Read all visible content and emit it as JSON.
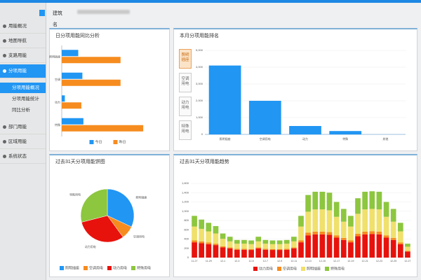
{
  "header": {
    "label": "建筑名称："
  },
  "sidebar": {
    "items": [
      "用能概况",
      "地图导航",
      "支路用能",
      "分项用能",
      "分项用能概况",
      "分项用能统计",
      "同比分析",
      "部门用能",
      "区域用能",
      "系统状态"
    ]
  },
  "chart_data": [
    {
      "type": "hbar",
      "title": "日分项用能同比分析",
      "categories": [
        "照明插座",
        "空调",
        "动力",
        "特殊"
      ],
      "xlim": [
        0,
        100
      ],
      "series": [
        {
          "name": "今日",
          "color": "#2196f3",
          "values": [
            16,
            20,
            3,
            21
          ]
        },
        {
          "name": "昨日",
          "color": "#f68c1f",
          "values": [
            57,
            57,
            19,
            79
          ]
        }
      ]
    },
    {
      "type": "bar",
      "title": "本月分项用能排名",
      "buttons": [
        "照明插座",
        "空调用电",
        "动力用电",
        "特殊用电"
      ],
      "categories": [
        "照明插座",
        "空调用电",
        "动力",
        "特殊",
        "其他"
      ],
      "values": [
        4100,
        2000,
        500,
        200,
        0
      ],
      "color": "#2196f3",
      "ylim": [
        0,
        5000
      ],
      "yticks": [
        0,
        {
          "value": 1000,
          "label": "1,000"
        },
        {
          "value": 2000,
          "label": "2,000"
        },
        {
          "value": 3000,
          "label": "3,000"
        },
        {
          "value": 4000,
          "label": "4,000"
        },
        {
          "value": 5000,
          "label": "5,000"
        }
      ],
      "grid": true
    },
    {
      "type": "pie",
      "title": "过去31天分项用能饼图",
      "categories": [
        "照明插座",
        "空调用电",
        "动力用电",
        "特殊用电"
      ],
      "values": [
        32,
        8,
        31,
        29
      ],
      "colors": [
        "#2196f3",
        "#f68c1f",
        "#e8120c",
        "#8dc63f"
      ]
    },
    {
      "type": "stacked",
      "title": "过去31天分项用能趋势",
      "categories": [
        "11-27",
        null,
        "11-29",
        null,
        "12-1",
        null,
        "12-3",
        null,
        "12-5",
        null,
        "12-7",
        null,
        "12-9",
        null,
        "12-11",
        null,
        "12-13",
        null,
        "12-15",
        null,
        "12-17",
        null,
        "12-19",
        null,
        "12-21",
        null,
        "12-23",
        null,
        "12-25",
        null,
        "12-27"
      ],
      "ylim": [
        0,
        1600
      ],
      "yticks": [
        0,
        200,
        400,
        600,
        800,
        {
          "value": 1000,
          "label": "1,000"
        },
        {
          "value": 1200,
          "label": "1,200"
        },
        {
          "value": 1400,
          "label": "1,400"
        },
        {
          "value": 1600,
          "label": "1,600"
        }
      ],
      "grid": true,
      "series": [
        {
          "name": "动力用电",
          "color": "#e8120c",
          "values": [
            330,
            310,
            290,
            270,
            220,
            200,
            170,
            170,
            165,
            200,
            170,
            165,
            165,
            170,
            200,
            330,
            480,
            500,
            500,
            490,
            430,
            380,
            330,
            460,
            500,
            510,
            500,
            430,
            380,
            290,
            130
          ]
        },
        {
          "name": "空调用电",
          "color": "#f68c1f",
          "values": [
            40,
            40,
            35,
            30,
            25,
            20,
            20,
            20,
            20,
            20,
            20,
            20,
            20,
            20,
            20,
            40,
            60,
            60,
            60,
            60,
            50,
            45,
            40,
            55,
            60,
            60,
            60,
            50,
            45,
            35,
            15
          ]
        },
        {
          "name": "照明插座",
          "color": "#f0e06c",
          "values": [
            300,
            270,
            240,
            220,
            160,
            130,
            110,
            110,
            105,
            130,
            110,
            105,
            105,
            110,
            130,
            300,
            450,
            480,
            480,
            470,
            400,
            350,
            300,
            430,
            480,
            480,
            480,
            400,
            350,
            240,
            90
          ]
        },
        {
          "name": "特殊用电",
          "color": "#8dc63f",
          "values": [
            230,
            200,
            185,
            160,
            115,
            100,
            80,
            80,
            80,
            100,
            80,
            80,
            80,
            80,
            100,
            230,
            360,
            380,
            380,
            380,
            320,
            275,
            230,
            335,
            380,
            380,
            380,
            320,
            275,
            185,
            65
          ]
        }
      ]
    }
  ]
}
